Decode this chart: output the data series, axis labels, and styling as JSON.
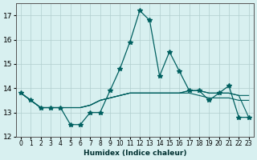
{
  "xlabel": "Humidex (Indice chaleur)",
  "x_ticks": [
    0,
    1,
    2,
    3,
    4,
    5,
    6,
    7,
    8,
    9,
    10,
    11,
    12,
    13,
    14,
    15,
    16,
    17,
    18,
    19,
    20,
    21,
    22,
    23
  ],
  "ylim": [
    12,
    17.5
  ],
  "yticks": [
    12,
    13,
    14,
    15,
    16,
    17
  ],
  "bg_color": "#d8f0f0",
  "grid_color": "#b0cece",
  "line_color": "#006060",
  "lines": [
    [
      13.8,
      13.5,
      13.2,
      13.2,
      13.2,
      12.5,
      12.5,
      13.0,
      13.0,
      13.9,
      14.8,
      15.9,
      17.2,
      16.8,
      14.5,
      15.5,
      14.7,
      13.9,
      13.9,
      13.5,
      13.8,
      14.1,
      12.8,
      12.8
    ],
    [
      13.8,
      13.5,
      13.2,
      13.2,
      13.2,
      13.2,
      13.2,
      13.3,
      13.5,
      13.6,
      13.7,
      13.8,
      13.8,
      13.8,
      13.8,
      13.8,
      13.8,
      13.8,
      13.7,
      13.6,
      13.6,
      13.6,
      13.5,
      13.5
    ],
    [
      13.8,
      13.5,
      13.2,
      13.2,
      13.2,
      13.2,
      13.2,
      13.3,
      13.5,
      13.6,
      13.7,
      13.8,
      13.8,
      13.8,
      13.8,
      13.8,
      13.8,
      13.9,
      13.9,
      13.8,
      13.8,
      13.8,
      13.7,
      13.7
    ],
    [
      13.8,
      13.5,
      13.2,
      13.2,
      13.2,
      13.2,
      13.2,
      13.3,
      13.5,
      13.6,
      13.7,
      13.8,
      13.8,
      13.8,
      13.8,
      13.8,
      13.8,
      13.9,
      13.9,
      13.8,
      13.8,
      13.8,
      13.7,
      12.8
    ]
  ]
}
